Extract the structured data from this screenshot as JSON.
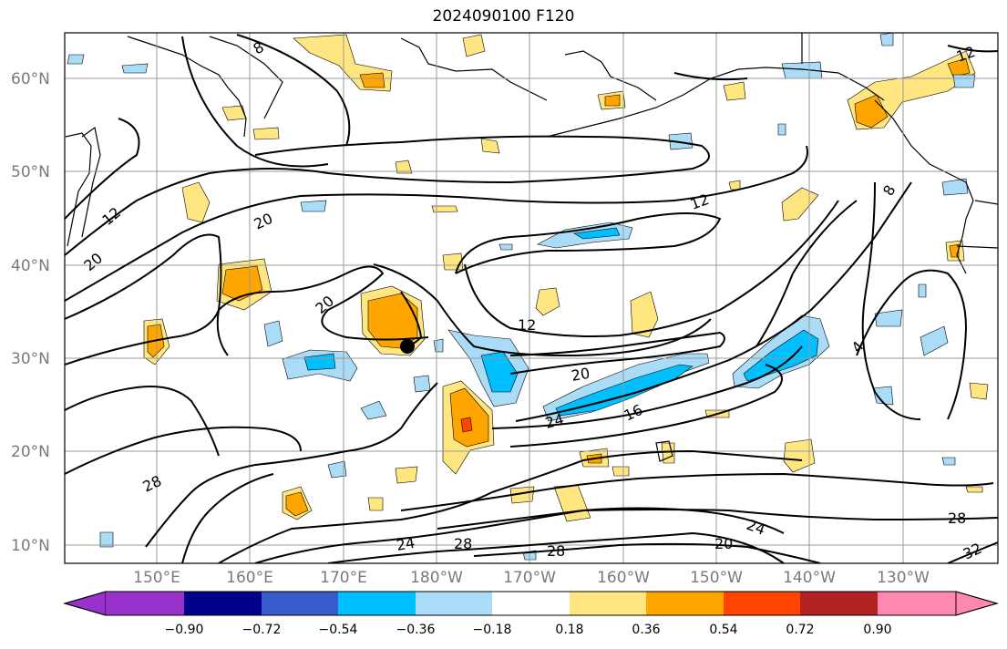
{
  "title": "2024090100 F120",
  "lat_labels": [
    "60°N",
    "50°N",
    "40°N",
    "30°N",
    "20°N",
    "10°N"
  ],
  "lon_labels": [
    "150°E",
    "160°E",
    "170°E",
    "180°W",
    "170°W",
    "160°W",
    "150°W",
    "140°W",
    "130°W"
  ],
  "contour_labels": [
    "8",
    "12",
    "20",
    "12",
    "20",
    "28",
    "20",
    "12",
    "16",
    "24",
    "8",
    "4",
    "28",
    "24",
    "20",
    "28",
    "24",
    "28",
    "32",
    "12",
    "20"
  ],
  "colorbar": {
    "tick_labels": [
      "−0.90",
      "−0.72",
      "−0.54",
      "−0.36",
      "−0.18",
      "0.18",
      "0.36",
      "0.54",
      "0.72",
      "0.90"
    ],
    "colors": [
      "#9932cc",
      "#00008b",
      "#3a5bcd",
      "#00bfff",
      "#aadcf7",
      "#ffffff",
      "#ffe680",
      "#ffa500",
      "#ff4500",
      "#b22222",
      "#ff88b0"
    ]
  },
  "colors": {
    "positive_light": "#ffe680",
    "positive_mid": "#ffa500",
    "positive_strong": "#ff4500",
    "negative_light": "#aadcf7",
    "negative_mid": "#00bfff",
    "grid": "#999999",
    "contour": "#000000"
  },
  "marker": "black-circle"
}
